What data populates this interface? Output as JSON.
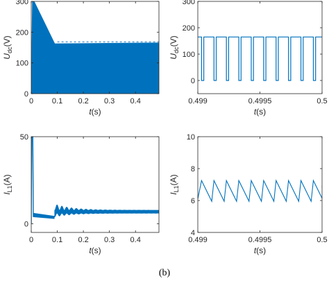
{
  "caption": "(b)",
  "chart_data": [
    {
      "type": "line",
      "panel": "top-left",
      "ylabel": {
        "main": "U",
        "sub": "dc",
        "unit": "(V)"
      },
      "xlabel": {
        "main": "t",
        "unit": "(s)"
      },
      "xlim": [
        0,
        0.49
      ],
      "ylim": [
        0,
        300
      ],
      "xticks": [
        0,
        0.1,
        0.2,
        0.3,
        0.4
      ],
      "xtick_labels": [
        "0",
        "0.1",
        "0.2",
        "0.3",
        "0.4"
      ],
      "yticks": [
        0,
        100,
        200,
        300
      ],
      "ytick_labels": [
        "0",
        "100",
        "200",
        "300"
      ],
      "color": "#0072BD",
      "description_values": {
        "envelope_upper": [
          [
            0,
            0
          ],
          [
            0.005,
            310
          ],
          [
            0.09,
            162
          ],
          [
            0.49,
            165
          ]
        ],
        "envelope_lower": [
          [
            0,
            0
          ],
          [
            0.49,
            0
          ]
        ],
        "switching_band": [
          0,
          165
        ]
      }
    },
    {
      "type": "line",
      "panel": "top-right",
      "ylabel": {
        "main": "U",
        "sub": "dc",
        "unit": "(V)"
      },
      "xlabel": {
        "main": "t",
        "unit": "(s)"
      },
      "xlim": [
        0.499,
        0.5
      ],
      "ylim": [
        -50,
        300
      ],
      "xticks": [
        0.499,
        0.4995,
        0.5
      ],
      "xtick_labels": [
        "0.499",
        "0.4995",
        "0.5"
      ],
      "yticks": [
        0,
        100,
        200,
        300
      ],
      "ytick_labels": [
        "0",
        "100",
        "200",
        "300"
      ],
      "color": "#0072BD",
      "pulse": {
        "high": 165,
        "low": 0,
        "period": 0.0001,
        "low_duration": 1.8e-05,
        "first_low_start": 0.49903
      }
    },
    {
      "type": "line",
      "panel": "bottom-left",
      "ylabel": {
        "main": "I",
        "sub": "L1",
        "unit": "(A)"
      },
      "xlabel": {
        "main": "t",
        "unit": "(s)"
      },
      "xlim": [
        0,
        0.49
      ],
      "ylim": [
        -5,
        50
      ],
      "xticks": [
        0,
        0.1,
        0.2,
        0.3,
        0.4
      ],
      "xtick_labels": [
        "0",
        "0.1",
        "0.2",
        "0.3",
        "0.4"
      ],
      "yticks": [
        0,
        50
      ],
      "ytick_labels": [
        "0",
        "50"
      ],
      "color": "#0072BD",
      "description_values": {
        "startup_peak": 50,
        "band_before_0_09": [
          3.5,
          6
        ],
        "steady_band": [
          6,
          7.5
        ]
      }
    },
    {
      "type": "line",
      "panel": "bottom-right",
      "ylabel": {
        "main": "I",
        "sub": "L1",
        "unit": "(A)"
      },
      "xlabel": {
        "main": "t",
        "unit": "(s)"
      },
      "xlim": [
        0.499,
        0.5
      ],
      "ylim": [
        4,
        10
      ],
      "xticks": [
        0.499,
        0.4995,
        0.5
      ],
      "xtick_labels": [
        "0.499",
        "0.4995",
        "0.5"
      ],
      "yticks": [
        4,
        6,
        8,
        10
      ],
      "ytick_labels": [
        "4",
        "6",
        "8",
        "10"
      ],
      "color": "#0072BD",
      "sawtooth": {
        "max": 7.25,
        "min": 5.95,
        "period": 0.0001,
        "first_peak": 0.49903,
        "start_value": 6.1
      }
    }
  ]
}
